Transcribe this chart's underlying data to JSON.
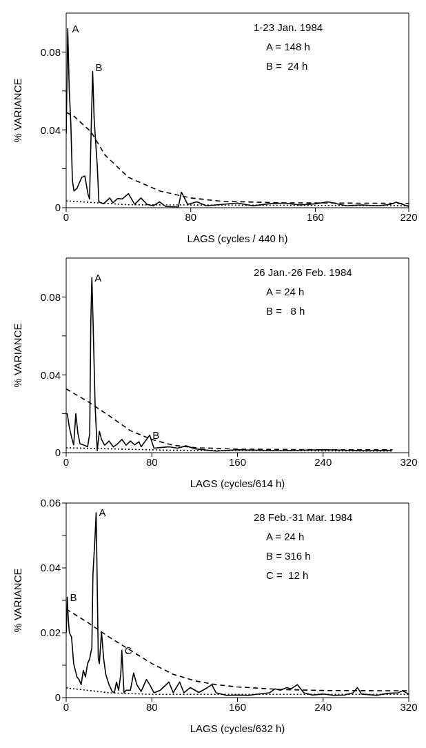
{
  "chart_data": [
    {
      "type": "line",
      "xlabel": "LAGS (cycles / 440 h)",
      "ylabel": "% VARIANCE",
      "xlim": [
        0,
        220
      ],
      "xticks": [
        0,
        80,
        160,
        220
      ],
      "ylim": [
        0,
        0.1
      ],
      "yticks": [
        0,
        {
          "value": 0.02,
          "label": null
        },
        0.04,
        {
          "value": 0.06,
          "label": null
        },
        0.08
      ],
      "annotations": [
        "1-23 Jan. 1984",
        "A = 148 h",
        "B =  24 h",
        {
          "text": "A",
          "x": 2,
          "y": 0.092
        },
        {
          "text": "B",
          "x": 17,
          "y": 0.072
        }
      ],
      "series": [
        {
          "color": "#000000",
          "line_style": "solid",
          "x": [
            0,
            1,
            2,
            3,
            4,
            5,
            7,
            10,
            12,
            14,
            15,
            16,
            17,
            18,
            20,
            21,
            24,
            28,
            30,
            33,
            36,
            40,
            44,
            48,
            52,
            56,
            60,
            64,
            72,
            74,
            78,
            84,
            90,
            100,
            110,
            120,
            130,
            140,
            150,
            160,
            168,
            180,
            190,
            200,
            208,
            212,
            220
          ],
          "values": [
            0.038,
            0.092,
            0.06,
            0.043,
            0.014,
            0.0086,
            0.01,
            0.0156,
            0.0163,
            0.007,
            0.0045,
            0.038,
            0.07,
            0.045,
            0.021,
            0.003,
            0.002,
            0.005,
            0.0025,
            0.0047,
            0.0045,
            0.0072,
            0.0017,
            0.005,
            0.0017,
            0.001,
            0.003,
            0.0006,
            0.0003,
            0.008,
            0.0017,
            0.003,
            0.001,
            0.0017,
            0.0024,
            0.001,
            0.002,
            0.0024,
            0.0014,
            0.002,
            0.003,
            0.001,
            0.0014,
            0.001,
            0.0017,
            0.0028,
            0.0006
          ]
        },
        {
          "color": "#000000",
          "line_style": "dashed",
          "x": [
            0,
            5,
            16,
            25,
            40,
            60,
            80,
            100,
            140,
            220
          ],
          "values": [
            0.049,
            0.047,
            0.039,
            0.027,
            0.0156,
            0.0086,
            0.005,
            0.0033,
            0.0025,
            0.0022
          ]
        },
        {
          "color": "#000000",
          "line_style": "dotted",
          "x": [
            0,
            40,
            220
          ],
          "values": [
            0.0035,
            0.0015,
            0.001
          ]
        }
      ]
    },
    {
      "type": "line",
      "xlabel": "LAGS (cycles/614 h)",
      "ylabel": "% VARIANCE",
      "xlim": [
        0,
        320
      ],
      "xticks": [
        0,
        80,
        160,
        240,
        320
      ],
      "ylim": [
        0,
        0.1
      ],
      "yticks": [
        0,
        {
          "value": 0.02,
          "label": null
        },
        0.04,
        {
          "value": 0.06,
          "label": null
        },
        0.08
      ],
      "annotations": [
        "26 Jan.-26 Feb. 1984",
        "A = 24 h",
        "B =   8 h",
        {
          "text": "A",
          "x": 24,
          "y": 0.09
        },
        {
          "text": "B",
          "x": 78,
          "y": 0.009
        }
      ],
      "series": [
        {
          "color": "#000000",
          "line_style": "solid",
          "x": [
            0,
            1,
            3,
            5,
            7,
            9,
            11,
            13,
            17,
            20,
            22,
            23,
            24,
            25,
            27,
            29,
            31,
            33,
            36,
            40,
            44,
            48,
            52,
            56,
            60,
            64,
            68,
            70,
            74,
            78,
            82,
            88,
            96,
            104,
            112,
            120,
            140,
            160,
            200,
            240,
            280,
            304
          ],
          "values": [
            0.02,
            0.02,
            0.013,
            0.008,
            0.004,
            0.02,
            0.0098,
            0.0045,
            0.0038,
            0.003,
            0.0098,
            0.067,
            0.09,
            0.07,
            0.025,
            0.001,
            0.011,
            0.0068,
            0.0038,
            0.006,
            0.003,
            0.0045,
            0.0068,
            0.0038,
            0.006,
            0.004,
            0.0056,
            0.003,
            0.006,
            0.009,
            0.0023,
            0.0026,
            0.003,
            0.0023,
            0.0035,
            0.002,
            0.0008,
            0.0015,
            0.001,
            0.0015,
            0.001,
            0.0012
          ]
        },
        {
          "color": "#000000",
          "line_style": "dashed",
          "x": [
            0,
            21,
            40,
            60,
            80,
            100,
            120,
            160,
            240,
            305
          ],
          "values": [
            0.0328,
            0.026,
            0.019,
            0.0113,
            0.0068,
            0.0038,
            0.0026,
            0.0018,
            0.0015,
            0.0015
          ]
        },
        {
          "color": "#000000",
          "line_style": "dotted",
          "x": [
            0,
            100,
            305
          ],
          "values": [
            0.0025,
            0.0012,
            0.0008
          ]
        }
      ]
    },
    {
      "type": "line",
      "xlabel": "LAGS (cycles/632 h)",
      "ylabel": "% VARIANCE",
      "xlim": [
        0,
        320
      ],
      "xticks": [
        0,
        80,
        160,
        240,
        320
      ],
      "ylim": [
        0,
        0.06
      ],
      "yticks": [
        0,
        {
          "value": 0.01,
          "label": null
        },
        0.02,
        {
          "value": 0.03,
          "label": null
        },
        0.04,
        {
          "value": 0.05,
          "label": null
        },
        0.06
      ],
      "annotations": [
        "28 Feb.-31 Mar. 1984",
        "A = 24 h",
        "B = 316 h",
        "C =  12 h",
        {
          "text": "A",
          "x": 28,
          "y": 0.057
        },
        {
          "text": "B",
          "x": 1,
          "y": 0.031
        },
        {
          "text": "C",
          "x": 52,
          "y": 0.0146
        }
      ],
      "series": [
        {
          "color": "#000000",
          "line_style": "solid",
          "x": [
            0,
            1,
            2,
            3,
            5,
            7,
            10,
            12,
            14,
            16,
            18,
            20,
            22,
            23,
            24,
            25,
            27,
            28,
            29,
            30,
            31,
            33,
            35,
            37,
            40,
            43,
            45,
            47,
            49,
            51,
            52,
            54,
            56,
            60,
            63,
            66,
            70,
            75,
            78,
            82,
            88,
            96,
            100,
            106,
            110,
            116,
            124,
            132,
            136,
            140,
            150,
            160,
            170,
            180,
            190,
            195,
            200,
            206,
            210,
            216,
            222,
            230,
            240,
            250,
            260,
            268,
            272,
            276,
            290,
            300,
            310,
            314,
            320
          ],
          "values": [
            0.02,
            0.031,
            0.024,
            0.02,
            0.0187,
            0.0105,
            0.0064,
            0.0056,
            0.004,
            0.0084,
            0.0064,
            0.0105,
            0.012,
            0.0138,
            0.0154,
            0.038,
            0.0498,
            0.057,
            0.035,
            0.012,
            0.0105,
            0.0203,
            0.012,
            0.0072,
            0.004,
            0.0019,
            0.0015,
            0.0048,
            0.0023,
            0.0072,
            0.0146,
            0.0015,
            0.0023,
            0.0023,
            0.0076,
            0.004,
            0.0019,
            0.0056,
            0.004,
            0.0015,
            0.0023,
            0.0048,
            0.0015,
            0.0048,
            0.0015,
            0.0031,
            0.0016,
            0.0031,
            0.004,
            0.0015,
            0.0007,
            0.0008,
            0.0007,
            0.0011,
            0.0015,
            0.0027,
            0.0023,
            0.0031,
            0.0027,
            0.004,
            0.0015,
            0.0008,
            0.0011,
            0.0007,
            0.0008,
            0.0015,
            0.0031,
            0.0011,
            0.0007,
            0.0013,
            0.0015,
            0.0021,
            0.0011
          ]
        },
        {
          "color": "#000000",
          "line_style": "dashed",
          "x": [
            0,
            20,
            40,
            60,
            80,
            100,
            120,
            140,
            160,
            200,
            240,
            320
          ],
          "values": [
            0.0273,
            0.0232,
            0.0187,
            0.0146,
            0.0105,
            0.0072,
            0.0052,
            0.004,
            0.0033,
            0.0025,
            0.0022,
            0.0021
          ]
        },
        {
          "color": "#000000",
          "line_style": "dotted",
          "x": [
            0,
            40,
            80,
            320
          ],
          "values": [
            0.003,
            0.0015,
            0.001,
            0.001
          ]
        }
      ]
    }
  ]
}
